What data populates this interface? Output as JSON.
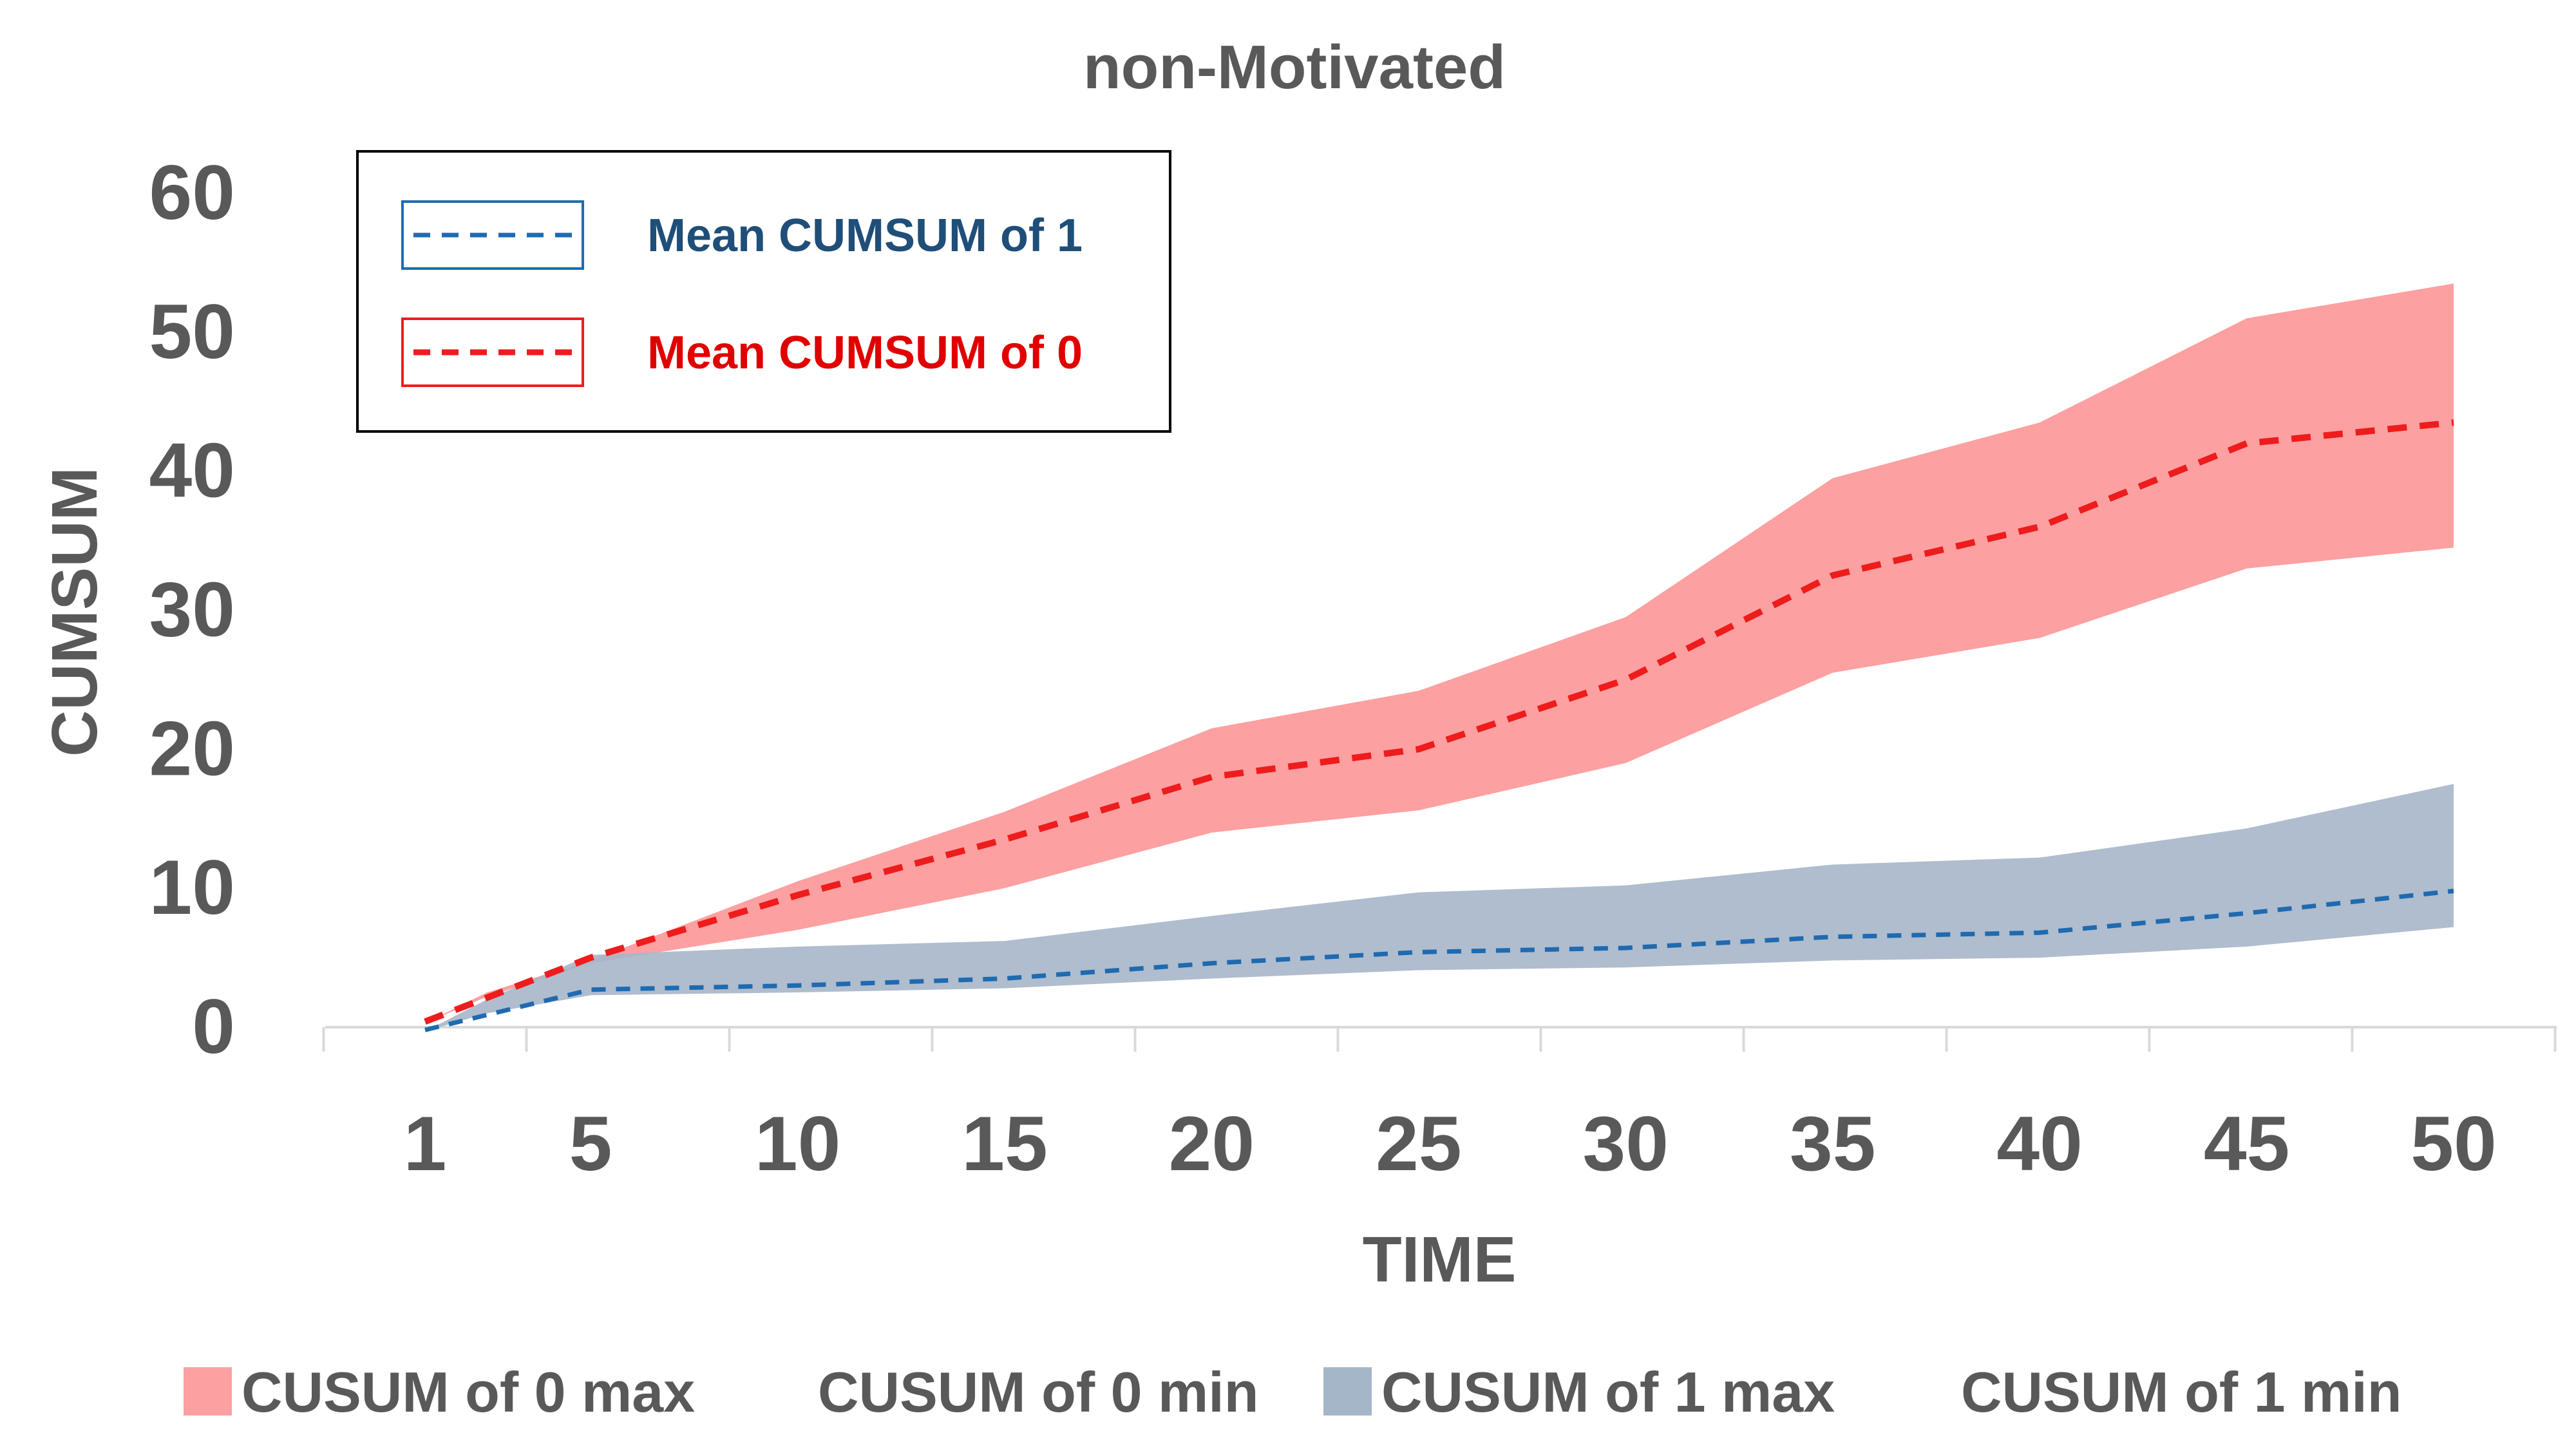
{
  "chart_data": {
    "type": "area",
    "title": "non-Motivated",
    "xlabel": "TIME",
    "ylabel": "CUMSUM",
    "x": [
      1,
      5,
      10,
      15,
      20,
      25,
      30,
      35,
      40,
      45,
      50
    ],
    "ylim": [
      0,
      60
    ],
    "yticks": [
      0,
      10,
      20,
      30,
      40,
      50,
      60
    ],
    "grid": false,
    "colors": {
      "band0": "#fca0a1",
      "band1": "#a6b6c9",
      "mean0": "#ee1c1c",
      "mean1": "#1f6ab0",
      "text": "#595959",
      "legend1_text": "#1f4e79",
      "legend0_text": "#e00000"
    },
    "bands": [
      {
        "name": "CUSUM of 0 max",
        "color_key": "band0",
        "values": [
          0.3,
          2.5,
          4.8,
          10.5,
          15.5,
          21.5,
          24.2,
          29.5,
          39.5,
          43.5,
          51.0,
          53.5
        ]
      },
      {
        "name": "CUSUM of 0 min",
        "values": [
          0.3,
          2.2,
          4.6,
          7.0,
          10.0,
          14.0,
          15.6,
          19.0,
          25.5,
          28.0,
          33.0,
          34.5
        ]
      },
      {
        "name": "CUSUM of 1 max",
        "color_key": "band1",
        "values": [
          -0.3,
          2.0,
          5.2,
          5.8,
          6.2,
          8.0,
          9.7,
          10.2,
          11.7,
          12.2,
          14.3,
          17.5
        ]
      },
      {
        "name": "CUSUM of 1 min",
        "values": [
          -0.3,
          1.0,
          2.3,
          2.5,
          2.8,
          3.5,
          4.1,
          4.3,
          4.8,
          5.0,
          5.8,
          7.2
        ]
      }
    ],
    "band_x": [
      1,
      2.5,
      5,
      10,
      15,
      20,
      25,
      30,
      35,
      40,
      45,
      50
    ],
    "series": [
      {
        "name": "Mean CUMSUM of 1",
        "color_key": "mean1",
        "values": [
          -0.2,
          2.7,
          3.0,
          3.5,
          4.6,
          5.4,
          5.7,
          6.5,
          6.8,
          8.2,
          9.8
        ]
      },
      {
        "name": "Mean CUMSUM of 0",
        "color_key": "mean0",
        "values": [
          0.4,
          5.0,
          9.5,
          13.5,
          18.0,
          20.0,
          25.0,
          32.5,
          36.0,
          42.0,
          43.5
        ]
      }
    ],
    "legend_top": [
      {
        "label": "Mean CUMSUM of 1",
        "color_key": "mean1",
        "text_key": "legend1_text"
      },
      {
        "label": "Mean CUMSUM of 0",
        "color_key": "mean0",
        "text_key": "legend0_text"
      }
    ],
    "legend_bottom": [
      {
        "label": "CUSUM of 0 max",
        "swatch": "band0"
      },
      {
        "label": "CUSUM of 0 min",
        "swatch": null
      },
      {
        "label": "CUSUM of 1 max",
        "swatch": "band1"
      },
      {
        "label": "CUSUM of 1 min",
        "swatch": null
      }
    ]
  }
}
